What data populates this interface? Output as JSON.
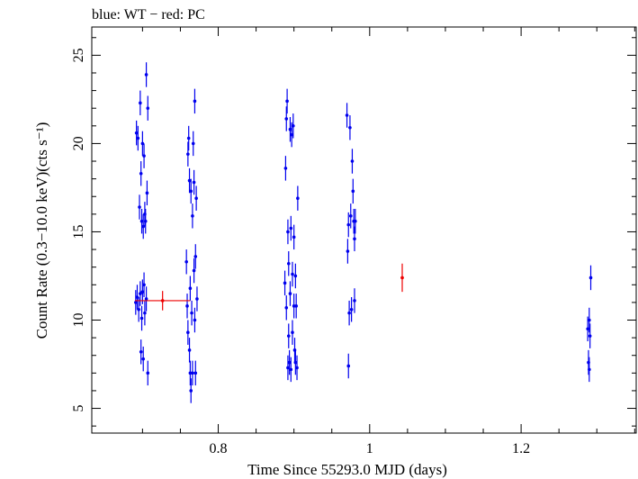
{
  "chart_data": {
    "type": "scatter",
    "title": "blue: WT − red: PC",
    "xlabel": "Time Since 55293.0 MJD (days)",
    "ylabel": "Count Rate (0.3−10.0 keV)(cts s⁻¹)",
    "xlim": [
      0.633,
      1.352
    ],
    "ylim": [
      3.6,
      26.6
    ],
    "x_ticks": [
      0.8,
      1,
      1.2
    ],
    "x_tick_labels": [
      "0.8",
      "1",
      "1.2"
    ],
    "y_ticks": [
      5,
      10,
      15,
      20,
      25
    ],
    "y_tick_labels": [
      "5",
      "10",
      "15",
      "20",
      "25"
    ],
    "grid": false,
    "legend": "none",
    "series": [
      {
        "color": "#0000ee",
        "points": [
          [
            0.691,
            11.0,
            0.7
          ],
          [
            0.692,
            20.6,
            0.7
          ],
          [
            0.693,
            11.3,
            0.7
          ],
          [
            0.694,
            20.3,
            0.7
          ],
          [
            0.695,
            10.6,
            0.7
          ],
          [
            0.696,
            16.4,
            0.7
          ],
          [
            0.697,
            22.3,
            0.7
          ],
          [
            0.697,
            11.5,
            0.7
          ],
          [
            0.698,
            18.3,
            0.7
          ],
          [
            0.698,
            8.2,
            0.7
          ],
          [
            0.699,
            15.6,
            0.7
          ],
          [
            0.699,
            10.1,
            0.7
          ],
          [
            0.7,
            20.0,
            0.7
          ],
          [
            0.7,
            11.6,
            0.7
          ],
          [
            0.701,
            15.3,
            0.7
          ],
          [
            0.701,
            7.8,
            0.7
          ],
          [
            0.702,
            19.3,
            0.7
          ],
          [
            0.702,
            12.0,
            0.7
          ],
          [
            0.703,
            10.4,
            0.7
          ],
          [
            0.703,
            16.0,
            0.7
          ],
          [
            0.704,
            15.6,
            0.7
          ],
          [
            0.705,
            23.9,
            0.7
          ],
          [
            0.705,
            11.2,
            0.7
          ],
          [
            0.706,
            17.2,
            0.7
          ],
          [
            0.707,
            22.0,
            0.7
          ],
          [
            0.707,
            7.0,
            0.7
          ],
          [
            0.758,
            13.3,
            0.7
          ],
          [
            0.759,
            10.8,
            0.7
          ],
          [
            0.76,
            19.4,
            0.7
          ],
          [
            0.76,
            9.3,
            0.7
          ],
          [
            0.761,
            20.3,
            0.7
          ],
          [
            0.762,
            8.3,
            0.7
          ],
          [
            0.762,
            17.9,
            0.7
          ],
          [
            0.763,
            11.8,
            0.7
          ],
          [
            0.763,
            7.0,
            0.7
          ],
          [
            0.764,
            17.3,
            0.7
          ],
          [
            0.764,
            6.0,
            0.7
          ],
          [
            0.765,
            10.4,
            0.7
          ],
          [
            0.766,
            15.9,
            0.7
          ],
          [
            0.766,
            7.0,
            0.7
          ],
          [
            0.767,
            20.0,
            0.7
          ],
          [
            0.768,
            12.8,
            0.7
          ],
          [
            0.768,
            17.8,
            0.7
          ],
          [
            0.769,
            22.4,
            0.7
          ],
          [
            0.769,
            10.0,
            0.7
          ],
          [
            0.77,
            13.6,
            0.7
          ],
          [
            0.77,
            7.0,
            0.7
          ],
          [
            0.771,
            16.9,
            0.7
          ],
          [
            0.772,
            11.2,
            0.7
          ],
          [
            0.888,
            12.1,
            0.7
          ],
          [
            0.889,
            18.6,
            0.7
          ],
          [
            0.89,
            21.4,
            0.7
          ],
          [
            0.89,
            10.7,
            0.7
          ],
          [
            0.891,
            22.4,
            0.7
          ],
          [
            0.892,
            7.3,
            0.7
          ],
          [
            0.892,
            15.0,
            0.7
          ],
          [
            0.893,
            9.1,
            0.7
          ],
          [
            0.893,
            13.2,
            0.7
          ],
          [
            0.894,
            7.6,
            0.7
          ],
          [
            0.895,
            20.8,
            0.7
          ],
          [
            0.895,
            11.5,
            0.7
          ],
          [
            0.896,
            15.2,
            0.7
          ],
          [
            0.896,
            7.2,
            0.7
          ],
          [
            0.897,
            20.5,
            0.7
          ],
          [
            0.898,
            12.6,
            0.7
          ],
          [
            0.898,
            9.3,
            0.7
          ],
          [
            0.899,
            21.0,
            0.7
          ],
          [
            0.9,
            10.8,
            0.7
          ],
          [
            0.9,
            14.7,
            0.7
          ],
          [
            0.901,
            8.3,
            0.7
          ],
          [
            0.902,
            12.5,
            0.7
          ],
          [
            0.902,
            7.6,
            0.7
          ],
          [
            0.903,
            10.8,
            0.7
          ],
          [
            0.904,
            7.3,
            0.7
          ],
          [
            0.905,
            16.9,
            0.7
          ],
          [
            0.97,
            21.6,
            0.7
          ],
          [
            0.971,
            13.9,
            0.7
          ],
          [
            0.972,
            7.4,
            0.7
          ],
          [
            0.972,
            15.4,
            0.7
          ],
          [
            0.973,
            10.4,
            0.7
          ],
          [
            0.974,
            20.9,
            0.7
          ],
          [
            0.975,
            15.9,
            0.7
          ],
          [
            0.976,
            10.6,
            0.7
          ],
          [
            0.977,
            19.0,
            0.7
          ],
          [
            0.978,
            17.3,
            0.7
          ],
          [
            0.979,
            15.6,
            0.7
          ],
          [
            0.98,
            11.1,
            0.7
          ],
          [
            0.98,
            14.6,
            0.7
          ],
          [
            0.981,
            15.6,
            0.7
          ],
          [
            1.288,
            9.5,
            0.7
          ],
          [
            1.289,
            7.6,
            0.7
          ],
          [
            1.29,
            10.0,
            0.7
          ],
          [
            1.29,
            7.2,
            0.7
          ],
          [
            1.291,
            9.1,
            0.7
          ],
          [
            1.292,
            12.4,
            0.7
          ]
        ]
      },
      {
        "color": "#ee0000",
        "points": [
          [
            0.7265,
            11.1,
            0.55,
            0.0365
          ],
          [
            1.043,
            12.4,
            0.8,
            0.002
          ]
        ]
      }
    ]
  }
}
